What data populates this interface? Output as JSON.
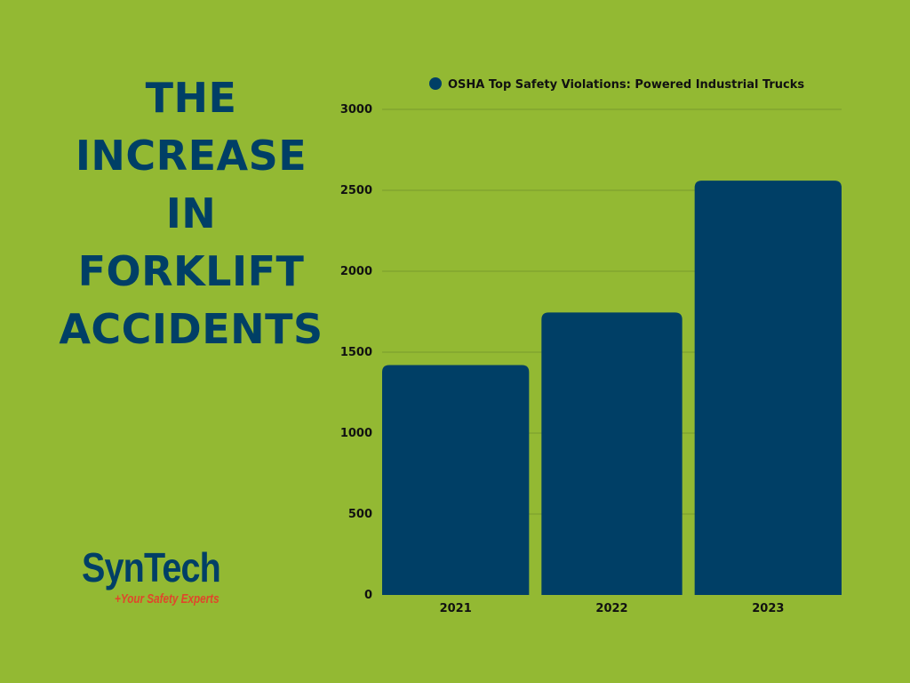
{
  "colors": {
    "background": "#93b933",
    "primary": "#003f66",
    "logo_accent": "#e0462b",
    "gridline": "#7a9a2c"
  },
  "headline": {
    "lines": [
      "THE",
      "INCREASE",
      "IN",
      "FORKLIFT",
      "ACCIDENTS"
    ]
  },
  "logo": {
    "name": "SynTech",
    "tagline": "+Your Safety Experts"
  },
  "chart_data": {
    "type": "bar",
    "title": "",
    "xlabel": "",
    "ylabel": "",
    "categories": [
      "2021",
      "2022",
      "2023"
    ],
    "series": [
      {
        "name": "OSHA Top Safety Violations: Powered Industrial Trucks",
        "values": [
          1420,
          1745,
          2560
        ]
      }
    ],
    "ylim": [
      0,
      3000
    ],
    "yticks": [
      0,
      500,
      1000,
      1500,
      2000,
      2500,
      3000
    ],
    "grid": true,
    "legend_position": "top"
  }
}
